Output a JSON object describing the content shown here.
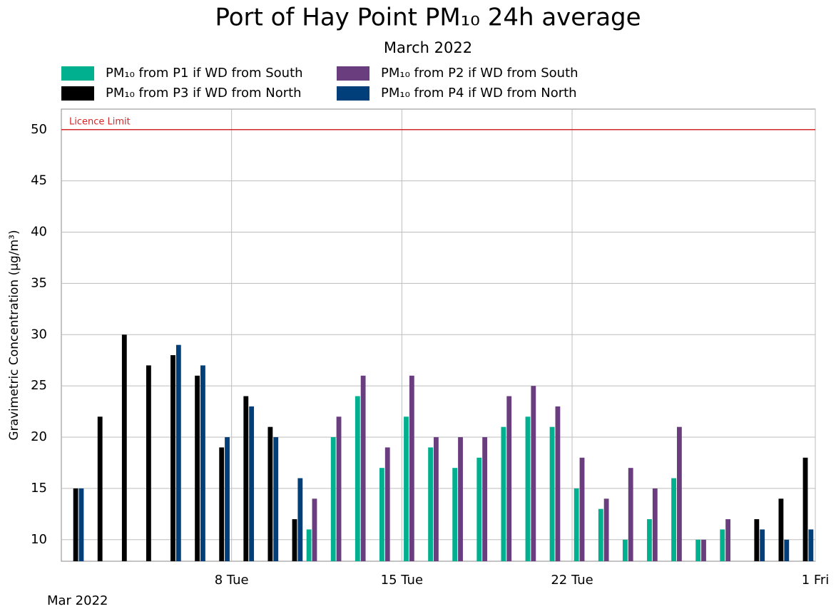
{
  "chart_data": {
    "type": "bar",
    "title": "Port of Hay Point PM₁₀ 24h average",
    "subtitle": "March 2022",
    "ylabel": "Gravimetric Concentration (µg/m³)",
    "xlabel": "Mar 2022",
    "x": [
      1,
      2,
      3,
      4,
      5,
      6,
      7,
      8,
      9,
      10,
      11,
      12,
      13,
      14,
      15,
      16,
      17,
      18,
      19,
      20,
      21,
      22,
      23,
      24,
      25,
      26,
      27,
      28,
      29,
      30,
      31
    ],
    "xlim": [
      1,
      32
    ],
    "xticks": [
      {
        "value": 8,
        "label": "8 Tue"
      },
      {
        "value": 15,
        "label": "15 Tue"
      },
      {
        "value": 22,
        "label": "22 Tue"
      },
      {
        "value": 32,
        "label": "1 Fri"
      }
    ],
    "ylim": [
      7.9,
      52
    ],
    "yticks": [
      10,
      15,
      20,
      25,
      30,
      35,
      40,
      45,
      50
    ],
    "grid": true,
    "limit": {
      "value": 50,
      "label": "Licence Limit",
      "color": "#d62728"
    },
    "series": [
      {
        "name": "PM₁₀ from P1 if WD from South",
        "color": "#00b08e",
        "values": [
          null,
          null,
          null,
          null,
          null,
          null,
          null,
          null,
          null,
          null,
          11,
          20,
          24,
          17,
          22,
          19,
          17,
          18,
          21,
          22,
          21,
          15,
          13,
          10,
          12,
          16,
          10,
          11,
          null,
          null,
          null
        ]
      },
      {
        "name": "PM₁₀ from P2 if WD from South",
        "color": "#6a3d7e",
        "values": [
          null,
          null,
          null,
          null,
          null,
          null,
          null,
          null,
          null,
          null,
          14,
          22,
          26,
          19,
          26,
          20,
          20,
          20,
          24,
          25,
          23,
          18,
          14,
          17,
          15,
          21,
          10,
          12,
          null,
          null,
          null
        ]
      },
      {
        "name": "PM₁₀ from P3 if WD from North",
        "color": "#000000",
        "values": [
          15,
          22,
          30,
          27,
          28,
          26,
          19,
          24,
          21,
          12,
          null,
          null,
          null,
          null,
          null,
          null,
          null,
          null,
          null,
          null,
          null,
          null,
          null,
          null,
          null,
          null,
          null,
          null,
          12,
          14,
          18
        ]
      },
      {
        "name": "PM₁₀ from P4 if WD from North",
        "color": "#003f7a",
        "values": [
          15,
          null,
          null,
          null,
          29,
          27,
          20,
          23,
          20,
          16,
          null,
          null,
          null,
          null,
          null,
          null,
          null,
          null,
          null,
          null,
          null,
          null,
          null,
          null,
          null,
          null,
          null,
          null,
          11,
          10,
          11
        ]
      }
    ]
  }
}
